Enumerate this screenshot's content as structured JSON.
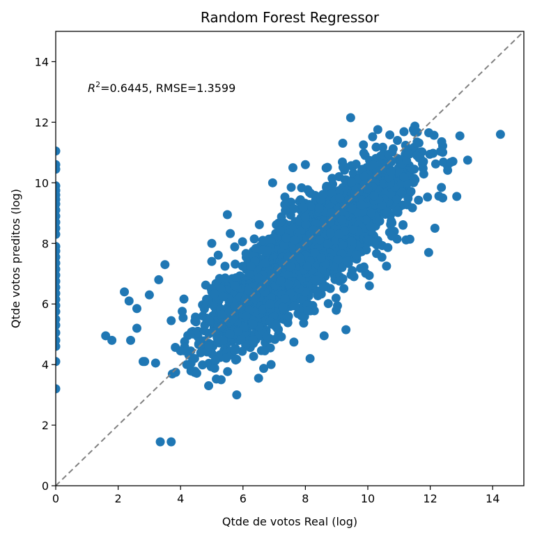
{
  "chart_data": {
    "type": "scatter",
    "title": "Random Forest Regressor",
    "xlabel": "Qtde de votos Real (log)",
    "ylabel": "Qtde votos preditos (log)",
    "annotation": {
      "r2_symbol": "R",
      "r2_exponent": "2",
      "text": "=0.6445, RMSE=1.3599"
    },
    "xlim": [
      0,
      15
    ],
    "ylim": [
      0,
      15
    ],
    "x_ticks": [
      0,
      2,
      4,
      6,
      8,
      10,
      12,
      14
    ],
    "y_ticks": [
      0,
      2,
      4,
      6,
      8,
      10,
      12,
      14
    ],
    "grid": false,
    "marker_color": "#1f77b4",
    "reference_line": {
      "from": [
        0,
        0
      ],
      "to": [
        15,
        15
      ],
      "style": "dashed",
      "color": "#808080"
    },
    "series": [
      {
        "x_zero_points": [
          0,
          0,
          0,
          0,
          0,
          0,
          0,
          0,
          0,
          0,
          0,
          0,
          0,
          0,
          0,
          0,
          0,
          0,
          0,
          0,
          0,
          0,
          0,
          0,
          0,
          0,
          0,
          0,
          0,
          0,
          0,
          0
        ],
        "y_zero_points": [
          11.05,
          10.6,
          10.45,
          9.9,
          9.75,
          9.6,
          9.45,
          9.3,
          9.1,
          8.9,
          8.7,
          8.5,
          8.3,
          7.9,
          7.75,
          7.55,
          7.35,
          7.15,
          6.95,
          6.75,
          6.55,
          6.35,
          6.15,
          5.95,
          5.75,
          5.5,
          5.3,
          5.05,
          4.8,
          4.6,
          4.1,
          3.2
        ],
        "points": [
          [
            3.35,
            1.45
          ],
          [
            3.7,
            1.45
          ],
          [
            5.8,
            3.0
          ],
          [
            4.9,
            3.3
          ],
          [
            1.6,
            4.95
          ],
          [
            1.8,
            4.8
          ],
          [
            2.4,
            4.8
          ],
          [
            2.8,
            4.1
          ],
          [
            3.2,
            4.05
          ],
          [
            2.2,
            6.4
          ],
          [
            2.35,
            6.1
          ],
          [
            3.5,
            7.3
          ],
          [
            2.6,
            5.85
          ],
          [
            2.6,
            5.2
          ],
          [
            3.0,
            6.3
          ],
          [
            2.85,
            4.1
          ],
          [
            4.0,
            4.45
          ],
          [
            4.45,
            4.2
          ],
          [
            4.2,
            4.0
          ],
          [
            5.3,
            3.5
          ],
          [
            6.5,
            3.55
          ],
          [
            8.15,
            4.2
          ],
          [
            6.9,
            4.0
          ],
          [
            12.15,
            8.5
          ],
          [
            11.95,
            7.7
          ],
          [
            12.85,
            9.55
          ],
          [
            13.2,
            10.75
          ],
          [
            14.25,
            11.6
          ],
          [
            12.4,
            9.5
          ],
          [
            9.45,
            12.15
          ],
          [
            10.95,
            11.4
          ],
          [
            12.95,
            11.55
          ],
          [
            10.05,
            6.6
          ],
          [
            9.5,
            7.1
          ],
          [
            10.6,
            7.25
          ],
          [
            5.0,
            8.0
          ],
          [
            5.5,
            8.95
          ],
          [
            6.95,
            10.0
          ],
          [
            7.6,
            10.5
          ],
          [
            8.0,
            10.6
          ],
          [
            8.6,
            4.95
          ],
          [
            9.3,
            5.15
          ],
          [
            4.3,
            5.0
          ],
          [
            4.9,
            4.6
          ],
          [
            3.7,
            5.45
          ],
          [
            3.3,
            6.8
          ]
        ]
      }
    ]
  }
}
